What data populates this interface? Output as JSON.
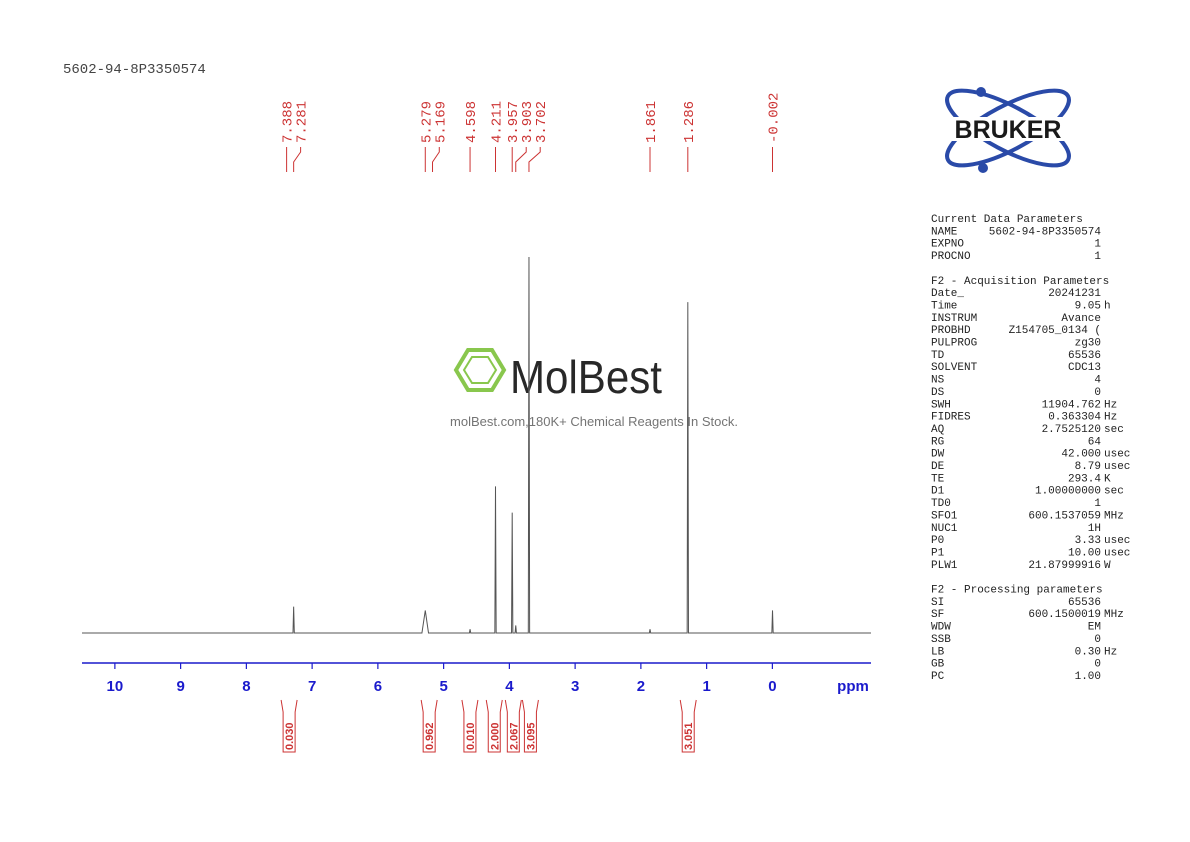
{
  "chart_data": {
    "type": "nmr",
    "title": "5602-94-8P3350574",
    "xlabel": "ppm",
    "xlim": [
      10.5,
      -1.5
    ],
    "xticks": [
      10,
      9,
      8,
      7,
      6,
      5,
      4,
      3,
      2,
      1,
      0
    ],
    "ylim": [
      0,
      100
    ],
    "color": "#555555",
    "axis_color": "#1a1acc",
    "label_color": "#cc3333",
    "x": [
      10.5,
      7.291,
      7.281,
      7.271,
      5.33,
      5.279,
      5.23,
      4.608,
      4.598,
      4.588,
      4.221,
      4.211,
      4.201,
      3.967,
      3.957,
      3.947,
      3.913,
      3.903,
      3.893,
      3.712,
      3.702,
      3.692,
      1.871,
      1.861,
      1.851,
      1.296,
      1.286,
      1.276,
      0.008,
      -0.002,
      -0.012,
      -1.5
    ],
    "values": [
      0,
      0,
      7,
      0,
      0,
      6,
      0,
      0,
      1,
      0,
      0,
      39,
      0,
      0,
      32,
      0,
      0,
      2,
      0,
      0,
      100,
      0,
      0,
      1,
      0,
      0,
      88,
      0,
      0,
      6,
      0,
      0
    ],
    "peak_labels": [
      7.388,
      7.281,
      5.279,
      5.169,
      4.598,
      4.211,
      3.957,
      3.903,
      3.702,
      1.861,
      1.286,
      -0.002
    ],
    "integrals": {
      "x": [
        7.35,
        5.22,
        4.6,
        4.23,
        3.94,
        3.68,
        1.28
      ],
      "values": [
        0.03,
        0.962,
        0.01,
        2,
        2.067,
        3.095,
        3.051
      ],
      "value_labels": [
        "0.030",
        "0.962",
        "0.010",
        "2.000",
        "2.067",
        "3.095",
        "3.051"
      ]
    }
  },
  "logo": "BRUKER",
  "watermark": {
    "brand": "MolBest",
    "tagline": "molBest.com,180K+ Chemical Reagents In Stock."
  },
  "parameters": [
    {
      "title": "Current Data Parameters",
      "rows": [
        [
          "NAME",
          "5602-94-8P3350574"
        ],
        [
          "EXPNO",
          "1"
        ],
        [
          "PROCNO",
          "1"
        ]
      ]
    },
    {
      "title": "F2 - Acquisition Parameters",
      "rows": [
        [
          "Date_",
          "20241231"
        ],
        [
          "Time",
          "9.05",
          "h"
        ],
        [
          "INSTRUM",
          "Avance"
        ],
        [
          "PROBHD",
          "Z154705_0134 ("
        ],
        [
          "PULPROG",
          "zg30"
        ],
        [
          "TD",
          "65536"
        ],
        [
          "SOLVENT",
          "CDC13"
        ],
        [
          "NS",
          "4"
        ],
        [
          "DS",
          "0"
        ],
        [
          "SWH",
          "11904.762",
          "Hz"
        ],
        [
          "FIDRES",
          "0.363304",
          "Hz"
        ],
        [
          "AQ",
          "2.7525120",
          "sec"
        ],
        [
          "RG",
          "64"
        ],
        [
          "DW",
          "42.000",
          "usec"
        ],
        [
          "DE",
          "8.79",
          "usec"
        ],
        [
          "TE",
          "293.4",
          "K"
        ],
        [
          "D1",
          "1.00000000",
          "sec"
        ],
        [
          "TD0",
          "1"
        ],
        [
          "SFO1",
          "600.1537059",
          "MHz"
        ],
        [
          "NUC1",
          "1H"
        ],
        [
          "P0",
          "3.33",
          "usec"
        ],
        [
          "P1",
          "10.00",
          "usec"
        ],
        [
          "PLW1",
          "21.87999916",
          "W"
        ]
      ]
    },
    {
      "title": "F2 - Processing parameters",
      "rows": [
        [
          "SI",
          "65536"
        ],
        [
          "SF",
          "600.1500019",
          "MHz"
        ],
        [
          "WDW",
          "EM"
        ],
        [
          "SSB",
          "0"
        ],
        [
          "LB",
          "0.30",
          "Hz"
        ],
        [
          "GB",
          "0"
        ],
        [
          "PC",
          "1.00"
        ]
      ]
    }
  ]
}
